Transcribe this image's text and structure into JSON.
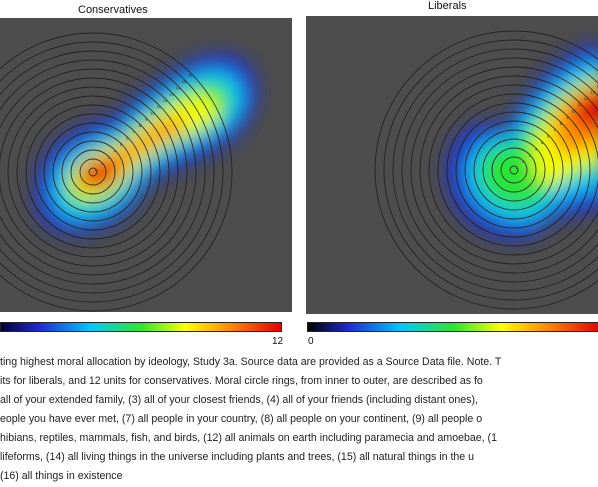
{
  "panels": [
    {
      "title": "Conservatives",
      "colorbar_min": "",
      "colorbar_max": "12"
    },
    {
      "title": "Liberals",
      "colorbar_min": "0",
      "colorbar_max": ""
    }
  ],
  "caption_lines": [
    "ting highest moral allocation by ideology, Study 3a. Source data are provided as a Source Data file. Note. T",
    "its for liberals, and 12 units for conservatives. Moral circle rings, from inner to outer, are described as fo",
    "all of your extended family, (3) all of your closest friends, (4) all of your friends (including distant ones),",
    "eople you have ever met, (7) all people in your country, (8) all people on your continent, (9) all people o",
    "hibians, reptiles, mammals, fish, and birds, (12) all animals on earth including paramecia and amoebae, (1",
    " lifeforms, (14) all living things in the universe including plants and trees, (15) all natural things in the u",
    "(16) all things in existence"
  ],
  "chart_data": [
    {
      "type": "heatmap",
      "title": "Conservatives",
      "rings": 16,
      "ring_labels": [
        "1",
        "2",
        "3",
        "4",
        "5",
        "6",
        "7",
        "8",
        "9",
        "10",
        "11",
        "12",
        "13",
        "14",
        "15",
        "16"
      ],
      "colorbar": {
        "min": 0,
        "max": 12,
        "colors": [
          "#000000",
          "#1f2bd6",
          "#00c8ff",
          "#2ee62e",
          "#ffff00",
          "#ff8800",
          "#e60000"
        ]
      },
      "hotspot_ring": 1,
      "background": "#4d4d4d"
    },
    {
      "type": "heatmap",
      "title": "Liberals",
      "rings": 16,
      "ring_labels": [
        "1",
        "2",
        "3",
        "4",
        "5",
        "6",
        "7",
        "8",
        "9",
        "10",
        "11",
        "12",
        "13",
        "14",
        "15",
        "16"
      ],
      "colorbar": {
        "min": 0,
        "max": 12,
        "colors": [
          "#000000",
          "#1f2bd6",
          "#00c8ff",
          "#2ee62e",
          "#ffff00",
          "#ff8800",
          "#e60000"
        ]
      },
      "hotspot_ring": 16,
      "background": "#4d4d4d"
    }
  ]
}
